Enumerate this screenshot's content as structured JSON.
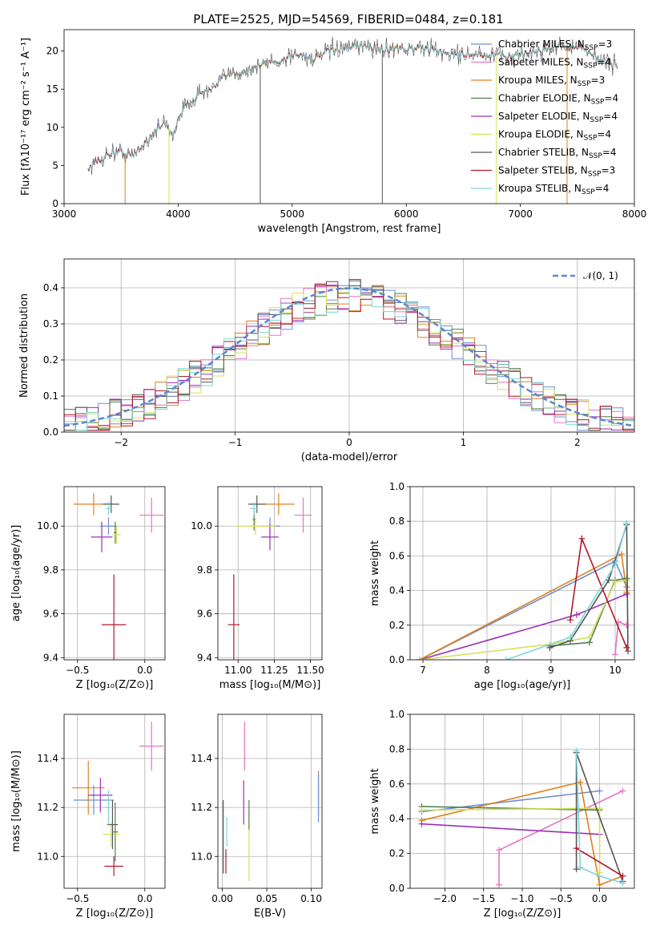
{
  "title": "PLATE=2525, MJD=54569, FIBERID=0484, z=0.181",
  "colors": {
    "Chabrier MILES": "#6b8fd6",
    "Salpeter MILES": "#e377c2",
    "Kroupa MILES": "#e0801c",
    "Chabrier ELODIE": "#4f7f4f",
    "Salpeter ELODIE": "#9b30b8",
    "Kroupa ELODIE": "#d4e157",
    "Chabrier STELIB": "#555555",
    "Salpeter STELIB": "#b2182b",
    "Kroupa STELIB": "#7fd3d8"
  },
  "chart_data": [
    {
      "id": "spectrum",
      "type": "line",
      "xlabel": "wavelength [Angstrom, rest frame]",
      "ylabel": "Flux [fλ10⁻¹⁷ erg cm⁻² s⁻¹ A⁻¹]",
      "xlim": [
        3000,
        8000
      ],
      "ylim": [
        0,
        22.8
      ],
      "xticks": [
        "3000",
        "4000",
        "5000",
        "6000",
        "7000",
        "8000"
      ],
      "yticks": [
        "0",
        "5",
        "10",
        "15",
        "20"
      ],
      "legend_position": "top-right",
      "legend": [
        {
          "series": "Chabrier MILES",
          "label": "Chabrier MILES, N",
          "sub": "SSP",
          "n": "=3"
        },
        {
          "series": "Salpeter MILES",
          "label": "Salpeter MILES, N",
          "sub": "SSP",
          "n": "=4"
        },
        {
          "series": "Kroupa MILES",
          "label": "Kroupa MILES, N",
          "sub": "SSP",
          "n": "=3"
        },
        {
          "series": "Chabrier ELODIE",
          "label": "Chabrier ELODIE, N",
          "sub": "SSP",
          "n": "=4"
        },
        {
          "series": "Salpeter ELODIE",
          "label": "Salpeter ELODIE, N",
          "sub": "SSP",
          "n": "=4"
        },
        {
          "series": "Kroupa ELODIE",
          "label": "Kroupa ELODIE, N",
          "sub": "SSP",
          "n": "=4"
        },
        {
          "series": "Chabrier STELIB",
          "label": "Chabrier STELIB, N",
          "sub": "SSP",
          "n": "=4"
        },
        {
          "series": "Salpeter STELIB",
          "label": "Salpeter STELIB, N",
          "sub": "SSP",
          "n": "=3"
        },
        {
          "series": "Kroupa STELIB",
          "label": "Kroupa STELIB, N",
          "sub": "SSP",
          "n": "=4"
        }
      ],
      "continuum": [
        [
          3210,
          4.6
        ],
        [
          3300,
          5.6
        ],
        [
          3400,
          6.6
        ],
        [
          3500,
          6.8
        ],
        [
          3600,
          6.2
        ],
        [
          3700,
          7.8
        ],
        [
          3800,
          9.6
        ],
        [
          3900,
          10.6
        ],
        [
          3950,
          8.6
        ],
        [
          4000,
          11.3
        ],
        [
          4100,
          13.3
        ],
        [
          4200,
          14.6
        ],
        [
          4300,
          14.9
        ],
        [
          4400,
          16.6
        ],
        [
          4500,
          17.1
        ],
        [
          4600,
          17.4
        ],
        [
          4700,
          18.0
        ],
        [
          4800,
          18.6
        ],
        [
          4900,
          18.6
        ],
        [
          5000,
          19.6
        ],
        [
          5100,
          19.4
        ],
        [
          5200,
          18.9
        ],
        [
          5300,
          19.9
        ],
        [
          5400,
          20.3
        ],
        [
          5500,
          20.4
        ],
        [
          5600,
          20.6
        ],
        [
          5700,
          20.5
        ],
        [
          5800,
          20.1
        ],
        [
          5900,
          20.6
        ],
        [
          6000,
          20.2
        ],
        [
          6100,
          20.4
        ],
        [
          6200,
          20.3
        ],
        [
          6300,
          19.9
        ],
        [
          6400,
          19.6
        ],
        [
          6500,
          19.6
        ],
        [
          6600,
          19.5
        ],
        [
          6700,
          19.3
        ],
        [
          6800,
          19.4
        ],
        [
          6900,
          19.3
        ],
        [
          7000,
          19.6
        ],
        [
          7100,
          19.8
        ],
        [
          7200,
          20.1
        ],
        [
          7300,
          20.6
        ],
        [
          7400,
          20.7
        ],
        [
          7500,
          20.5
        ],
        [
          7600,
          19.8
        ],
        [
          7700,
          19.0
        ],
        [
          7800,
          18.2
        ],
        [
          7850,
          18.0
        ]
      ],
      "dropouts": [
        [
          3535,
          "Kroupa MILES"
        ],
        [
          3920,
          "Kroupa ELODIE"
        ],
        [
          4720,
          "Chabrier STELIB"
        ],
        [
          5790,
          "Chabrier STELIB"
        ],
        [
          6790,
          "Kroupa ELODIE"
        ],
        [
          7410,
          "Kroupa MILES"
        ]
      ]
    },
    {
      "id": "residuals",
      "type": "bar",
      "xlabel": "(data-model)/error",
      "ylabel": "Normed distribution",
      "xlim": [
        -2.5,
        2.5
      ],
      "ylim": [
        0,
        0.48
      ],
      "xticks": [
        "−2",
        "−1",
        "0",
        "1",
        "2"
      ],
      "yticks": [
        "0.0",
        "0.1",
        "0.2",
        "0.3",
        "0.4"
      ],
      "legend_position": "top-right",
      "curve_label": "𝒩(0, 1)",
      "bin_width": 0.1,
      "bin_start": -2.5
    },
    {
      "id": "age-vs-Z",
      "type": "scatter",
      "xlabel": "Z [log₁₀(Z/Z⊙)]",
      "ylabel": "age  [log₁₀(age/yr)]",
      "xlim": [
        -0.6,
        0.15
      ],
      "ylim": [
        9.39,
        10.18
      ],
      "xticks": [
        "−0.5",
        "0.0"
      ],
      "yticks": [
        "9.4",
        "9.6",
        "9.8",
        "10.0"
      ],
      "points": [
        {
          "series": "Chabrier MILES",
          "x": -0.27,
          "y": 10.0,
          "dx": 0.06,
          "dy": 0.04
        },
        {
          "series": "Salpeter MILES",
          "x": 0.05,
          "y": 10.05,
          "dx": 0.09,
          "dy": 0.08
        },
        {
          "series": "Kroupa MILES",
          "x": -0.38,
          "y": 10.1,
          "dx": 0.15,
          "dy": 0.05
        },
        {
          "series": "Chabrier ELODIE",
          "x": -0.22,
          "y": 9.97,
          "dx": 0.01,
          "dy": 0.05
        },
        {
          "series": "Salpeter ELODIE",
          "x": -0.32,
          "y": 9.95,
          "dx": 0.08,
          "dy": 0.07
        },
        {
          "series": "Kroupa ELODIE",
          "x": -0.21,
          "y": 9.96,
          "dx": 0.03,
          "dy": 0.04
        },
        {
          "series": "Chabrier STELIB",
          "x": -0.25,
          "y": 10.1,
          "dx": 0.06,
          "dy": 0.04
        },
        {
          "series": "Salpeter STELIB",
          "x": -0.23,
          "y": 9.55,
          "dx": 0.09,
          "dy": 0.23
        },
        {
          "series": "Kroupa STELIB",
          "x": -0.27,
          "y": 10.08,
          "dx": 0.02,
          "dy": 0.03
        }
      ]
    },
    {
      "id": "age-vs-mass",
      "type": "scatter",
      "xlabel": "mass [log₁₀(M/M⊙)]",
      "ylabel": "",
      "xlim": [
        10.86,
        11.58
      ],
      "ylim": [
        9.39,
        10.18
      ],
      "xticks": [
        "11.00",
        "11.25",
        "11.50"
      ],
      "yticks": [
        "9.4",
        "9.6",
        "9.8",
        "10.0"
      ],
      "points": [
        {
          "series": "Chabrier MILES",
          "x": 11.22,
          "y": 10.0,
          "dx": 0.07,
          "dy": 0.04
        },
        {
          "series": "Salpeter MILES",
          "x": 11.45,
          "y": 10.05,
          "dx": 0.06,
          "dy": 0.08
        },
        {
          "series": "Kroupa MILES",
          "x": 11.28,
          "y": 10.1,
          "dx": 0.11,
          "dy": 0.05
        },
        {
          "series": "Chabrier ELODIE",
          "x": 11.11,
          "y": 10.03,
          "dx": 0.01,
          "dy": 0.05
        },
        {
          "series": "Salpeter ELODIE",
          "x": 11.22,
          "y": 9.95,
          "dx": 0.06,
          "dy": 0.06
        },
        {
          "series": "Kroupa ELODIE",
          "x": 11.12,
          "y": 10.0,
          "dx": 0.14,
          "dy": 0.04
        },
        {
          "series": "Chabrier STELIB",
          "x": 11.13,
          "y": 10.1,
          "dx": 0.06,
          "dy": 0.04
        },
        {
          "series": "Salpeter STELIB",
          "x": 10.97,
          "y": 9.55,
          "dx": 0.04,
          "dy": 0.23
        },
        {
          "series": "Kroupa STELIB",
          "x": 11.11,
          "y": 10.08,
          "dx": 0.03,
          "dy": 0.03
        }
      ]
    },
    {
      "id": "weight-vs-age",
      "type": "line",
      "xlabel": "age  [log₁₀(age/yr)]",
      "ylabel": "mass weight",
      "xlim": [
        6.8,
        10.3
      ],
      "ylim": [
        0,
        1.0
      ],
      "xticks": [
        "7",
        "8",
        "9",
        "10"
      ],
      "yticks": [
        "0.0",
        "0.2",
        "0.4",
        "0.6",
        "0.8",
        "1.0"
      ],
      "series": [
        {
          "name": "Chabrier MILES",
          "x": [
            6.95,
            10.0,
            10.18
          ],
          "y": [
            0.0,
            0.57,
            0.42
          ]
        },
        {
          "name": "Salpeter MILES",
          "x": [
            10.0,
            10.05,
            10.18
          ],
          "y": [
            0.03,
            0.22,
            0.2
          ]
        },
        {
          "name": "Kroupa MILES",
          "x": [
            6.95,
            10.1,
            10.18
          ],
          "y": [
            0.0,
            0.61,
            0.39
          ]
        },
        {
          "name": "Chabrier ELODIE",
          "x": [
            8.98,
            9.6,
            10.0,
            10.18
          ],
          "y": [
            0.08,
            0.1,
            0.46,
            0.47
          ]
        },
        {
          "name": "Salpeter ELODIE",
          "x": [
            6.95,
            9.4,
            10.18
          ],
          "y": [
            0.0,
            0.26,
            0.38
          ]
        },
        {
          "name": "Kroupa ELODIE",
          "x": [
            6.95,
            8.98,
            9.6,
            10.0,
            10.18
          ],
          "y": [
            0.0,
            0.09,
            0.13,
            0.45,
            0.46
          ]
        },
        {
          "name": "Chabrier STELIB",
          "x": [
            8.98,
            9.3,
            9.9,
            10.18,
            10.2
          ],
          "y": [
            0.07,
            0.11,
            0.46,
            0.78,
            0.05
          ]
        },
        {
          "name": "Salpeter STELIB",
          "x": [
            9.3,
            9.48,
            10.18
          ],
          "y": [
            0.23,
            0.7,
            0.07
          ]
        },
        {
          "name": "Kroupa STELIB",
          "x": [
            8.3,
            9.3,
            10.0,
            10.18
          ],
          "y": [
            0.0,
            0.13,
            0.55,
            0.79
          ]
        }
      ]
    },
    {
      "id": "mass-vs-Z",
      "type": "scatter",
      "xlabel": "Z [log₁₀(Z/Z⊙)]",
      "ylabel": "mass [log₁₀(M/M⊙)]",
      "xlim": [
        -0.6,
        0.15
      ],
      "ylim": [
        10.87,
        11.58
      ],
      "xticks": [
        "−0.5",
        "0.0"
      ],
      "yticks": [
        "11.0",
        "11.2",
        "11.4"
      ],
      "points": [
        {
          "series": "Chabrier MILES",
          "x": -0.38,
          "y": 11.23,
          "dx": 0.15,
          "dy": 0.06
        },
        {
          "series": "Salpeter MILES",
          "x": 0.05,
          "y": 11.45,
          "dx": 0.09,
          "dy": 0.1
        },
        {
          "series": "Kroupa MILES",
          "x": -0.42,
          "y": 11.28,
          "dx": 0.12,
          "dy": 0.11
        },
        {
          "series": "Chabrier ELODIE",
          "x": -0.22,
          "y": 11.1,
          "dx": 0.02,
          "dy": 0.12
        },
        {
          "series": "Salpeter ELODIE",
          "x": -0.33,
          "y": 11.25,
          "dx": 0.09,
          "dy": 0.07
        },
        {
          "series": "Kroupa ELODIE",
          "x": -0.25,
          "y": 11.09,
          "dx": 0.06,
          "dy": 0.05
        },
        {
          "series": "Chabrier STELIB",
          "x": -0.24,
          "y": 11.13,
          "dx": 0.04,
          "dy": 0.1
        },
        {
          "series": "Salpeter STELIB",
          "x": -0.23,
          "y": 10.96,
          "dx": 0.07,
          "dy": 0.04
        },
        {
          "series": "Kroupa STELIB",
          "x": -0.27,
          "y": 11.2,
          "dx": 0.03,
          "dy": 0.07
        }
      ]
    },
    {
      "id": "mass-vs-EBV",
      "type": "scatter",
      "xlabel": "E(B-V)",
      "ylabel": "",
      "xlim": [
        -0.005,
        0.112
      ],
      "ylim": [
        10.87,
        11.58
      ],
      "xticks": [
        "0.00",
        "0.05",
        "0.10"
      ],
      "yticks": [
        "11.0",
        "11.2",
        "11.4"
      ],
      "points": [
        {
          "series": "Kroupa MILES",
          "x": 0.108,
          "y": 11.26,
          "dx": 0.0,
          "dy": 0.09
        },
        {
          "series": "Salpeter MILES",
          "x": 0.025,
          "y": 11.45,
          "dx": 0.0,
          "dy": 0.1
        },
        {
          "series": "Chabrier MILES",
          "x": 0.108,
          "y": 11.24,
          "dx": 0.0,
          "dy": 0.1
        },
        {
          "series": "Salpeter ELODIE",
          "x": 0.024,
          "y": 11.22,
          "dx": 0.0,
          "dy": 0.09
        },
        {
          "series": "Kroupa ELODIE",
          "x": 0.03,
          "y": 11.04,
          "dx": 0.0,
          "dy": 0.14
        },
        {
          "series": "Chabrier ELODIE",
          "x": 0.03,
          "y": 11.17,
          "dx": 0.0,
          "dy": 0.06
        },
        {
          "series": "Chabrier STELIB",
          "x": 0.001,
          "y": 11.08,
          "dx": 0.0,
          "dy": 0.15
        },
        {
          "series": "Salpeter STELIB",
          "x": 0.004,
          "y": 10.98,
          "dx": 0.0,
          "dy": 0.05
        },
        {
          "series": "Kroupa STELIB",
          "x": 0.005,
          "y": 11.1,
          "dx": 0.0,
          "dy": 0.06
        }
      ]
    },
    {
      "id": "weight-vs-Z",
      "type": "line",
      "xlabel": "Z [log₁₀(Z/Z⊙)]",
      "ylabel": "mass weight",
      "xlim": [
        -2.45,
        0.45
      ],
      "ylim": [
        0,
        1.0
      ],
      "xticks": [
        "−2.0",
        "−1.5",
        "−1.0",
        "−0.5",
        "0.0"
      ],
      "yticks": [
        "0.0",
        "0.2",
        "0.4",
        "0.6",
        "0.8",
        "1.0"
      ],
      "series": [
        {
          "name": "Chabrier MILES",
          "x": [
            -2.3,
            0.0
          ],
          "y": [
            0.44,
            0.56
          ]
        },
        {
          "name": "Salpeter MILES",
          "x": [
            -1.3,
            -1.3,
            0.3
          ],
          "y": [
            0.02,
            0.22,
            0.56
          ]
        },
        {
          "name": "Kroupa MILES",
          "x": [
            -2.3,
            -0.25,
            0.0,
            0.3
          ],
          "y": [
            0.39,
            0.61,
            0.02,
            0.07
          ]
        },
        {
          "name": "Chabrier ELODIE",
          "x": [
            -2.3,
            0.0
          ],
          "y": [
            0.47,
            0.45
          ]
        },
        {
          "name": "Salpeter ELODIE",
          "x": [
            -2.3,
            0.0
          ],
          "y": [
            0.37,
            0.31
          ]
        },
        {
          "name": "Kroupa ELODIE",
          "x": [
            -2.3,
            0.0,
            0.0
          ],
          "y": [
            0.45,
            0.46,
            0.09
          ]
        },
        {
          "name": "Chabrier STELIB",
          "x": [
            -0.3,
            -0.3,
            0.3
          ],
          "y": [
            0.11,
            0.78,
            0.04
          ]
        },
        {
          "name": "Salpeter STELIB",
          "x": [
            -0.3,
            0.3
          ],
          "y": [
            0.23,
            0.07
          ]
        },
        {
          "name": "Kroupa STELIB",
          "x": [
            -0.3,
            -0.25,
            0.0,
            0.3
          ],
          "y": [
            0.79,
            0.12,
            0.07,
            0.03
          ]
        }
      ]
    }
  ]
}
